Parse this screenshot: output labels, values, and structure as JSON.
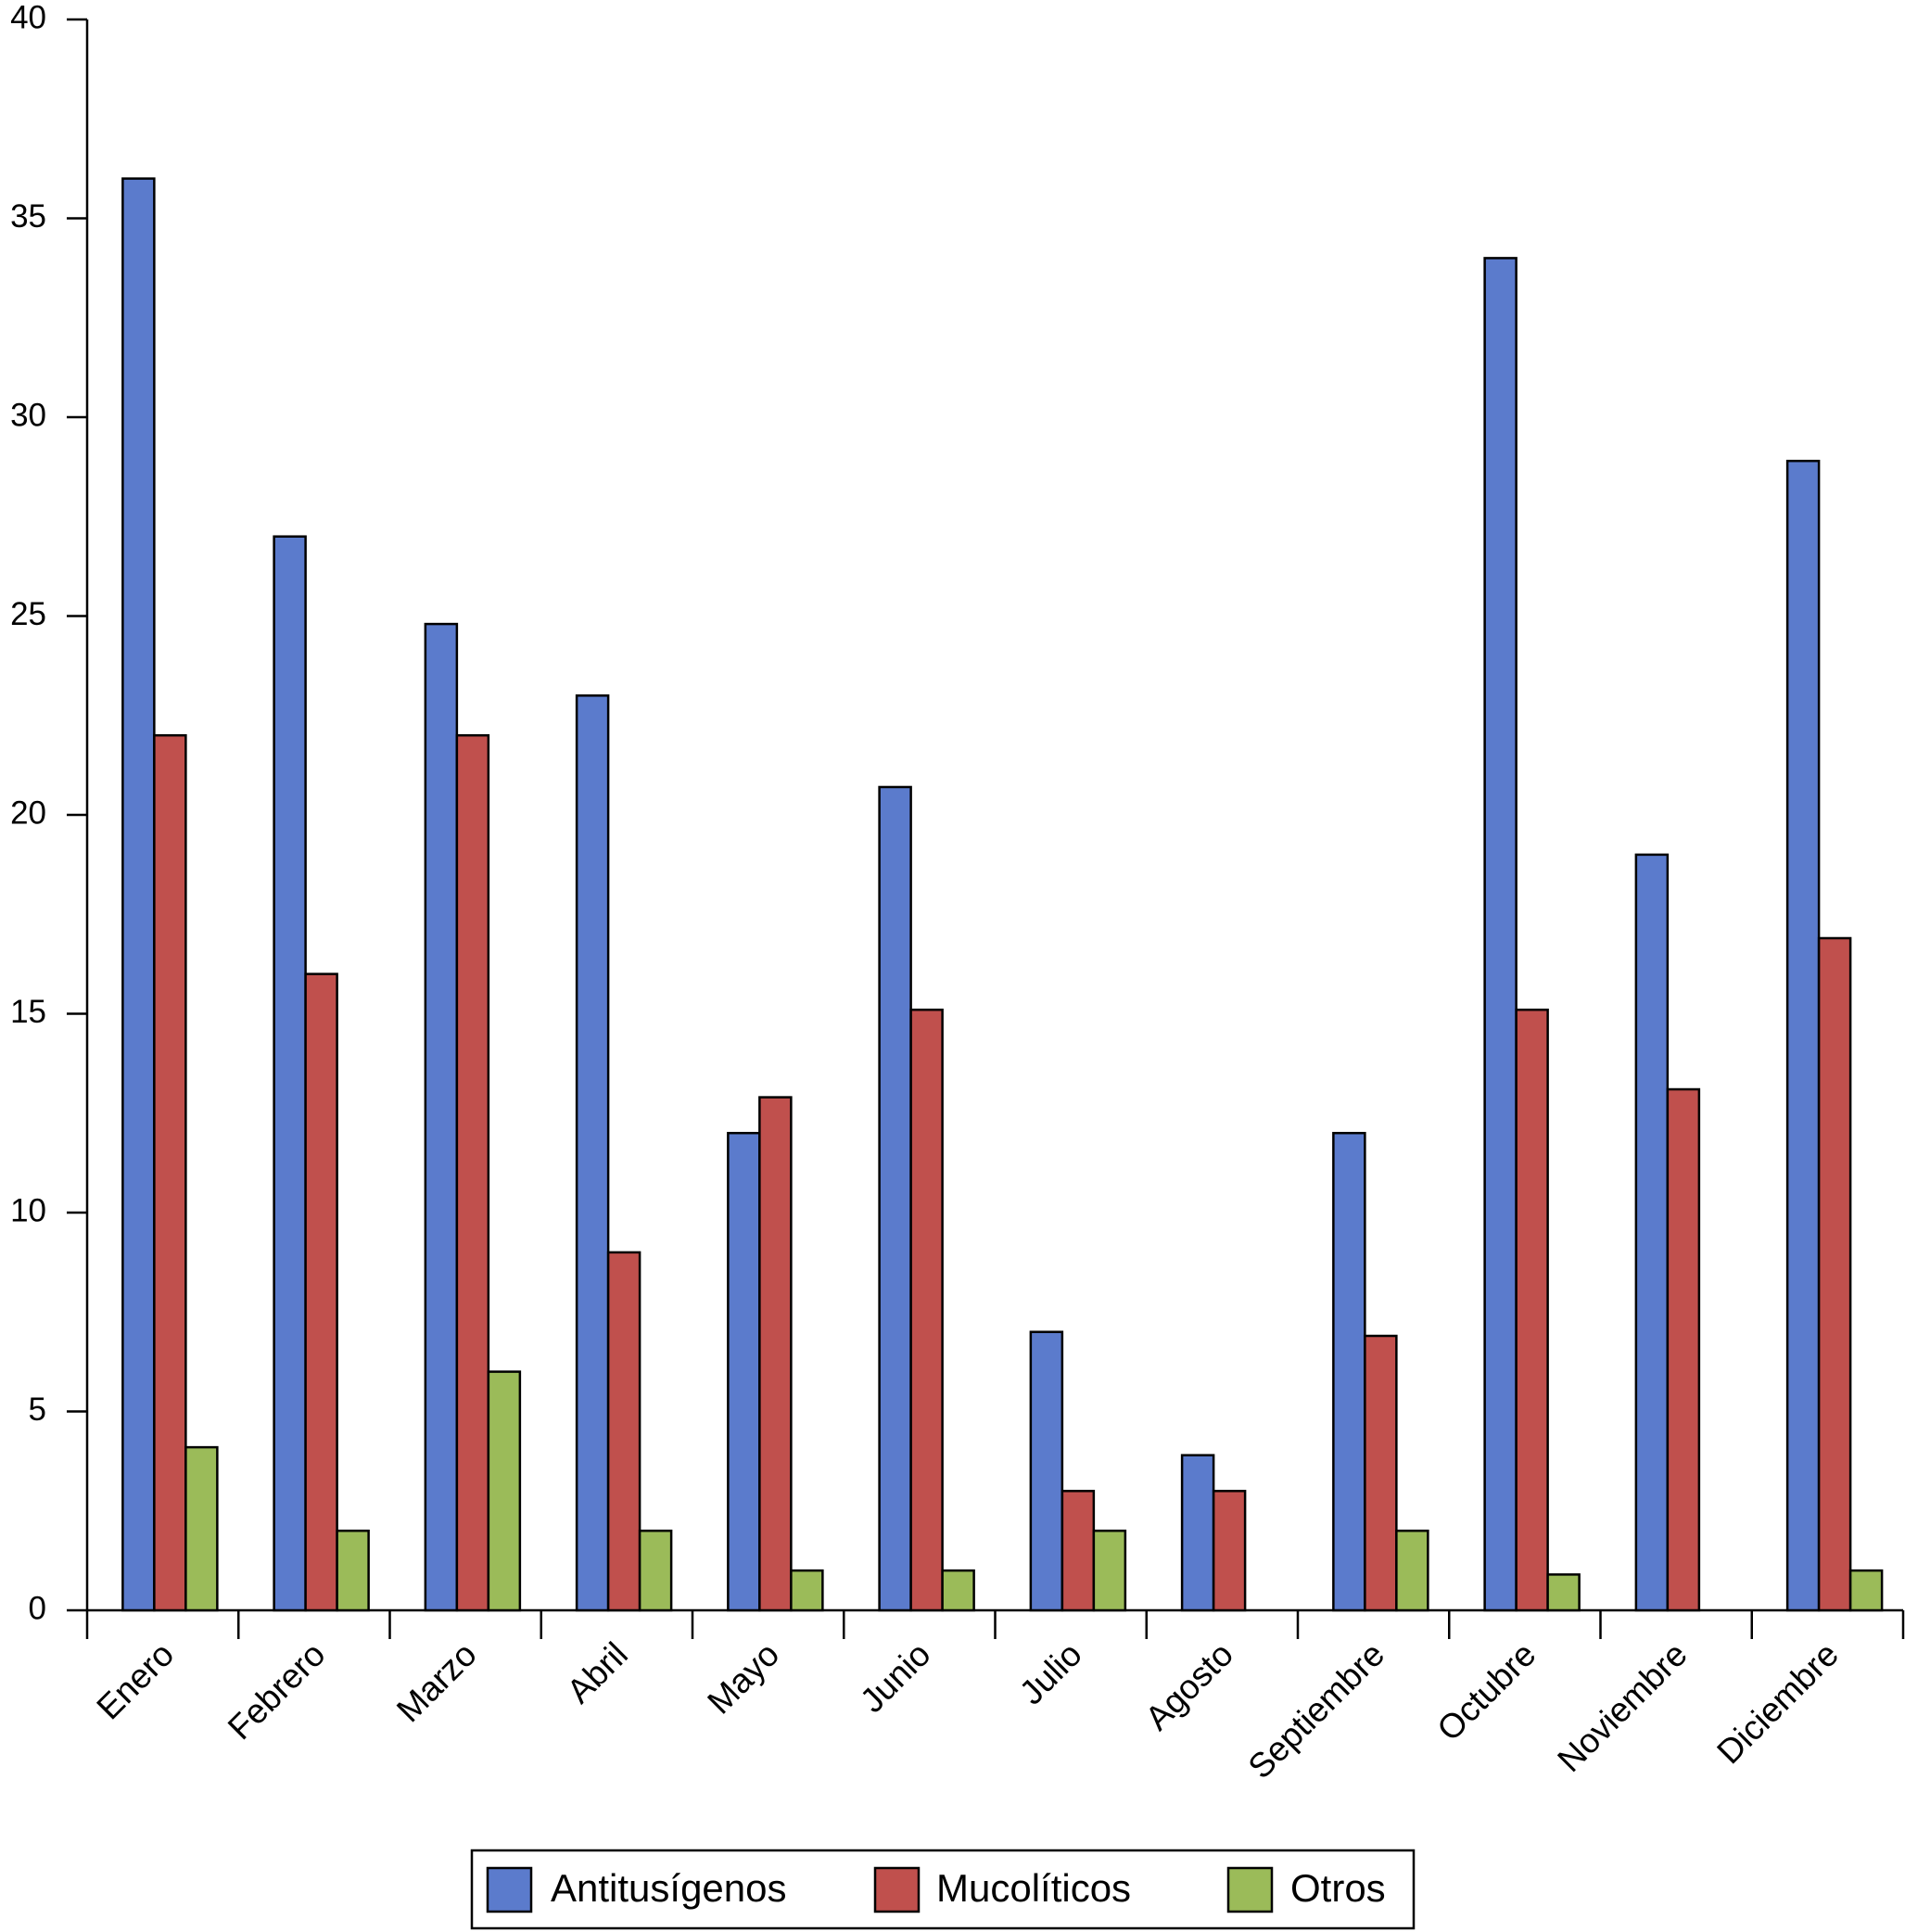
{
  "chart_data": {
    "type": "bar",
    "categories": [
      "Enero",
      "Febrero",
      "Marzo",
      "Abril",
      "Mayo",
      "Junio",
      "Julio",
      "Agosto",
      "Septiembre",
      "Octubre",
      "Noviembre",
      "Diciembre"
    ],
    "series": [
      {
        "name": "Antitusígenos",
        "color": "#5b7bcc",
        "values": [
          36,
          27,
          24.8,
          23,
          12,
          20.7,
          7,
          3.9,
          12,
          34,
          19,
          28.9
        ]
      },
      {
        "name": "Mucolíticos",
        "color": "#c0504d",
        "values": [
          22,
          16,
          22,
          9,
          12.9,
          15.1,
          3,
          3,
          6.9,
          15.1,
          13.1,
          16.9
        ]
      },
      {
        "name": "Otros",
        "color": "#9bbb59",
        "values": [
          4.1,
          2,
          6,
          2,
          1,
          1,
          2,
          null,
          2,
          0.9,
          null,
          1
        ]
      }
    ],
    "ylim": [
      0,
      40
    ],
    "yticks": [
      0,
      5,
      10,
      15,
      20,
      25,
      30,
      35,
      40
    ],
    "grid": false,
    "legend": "bottom"
  }
}
